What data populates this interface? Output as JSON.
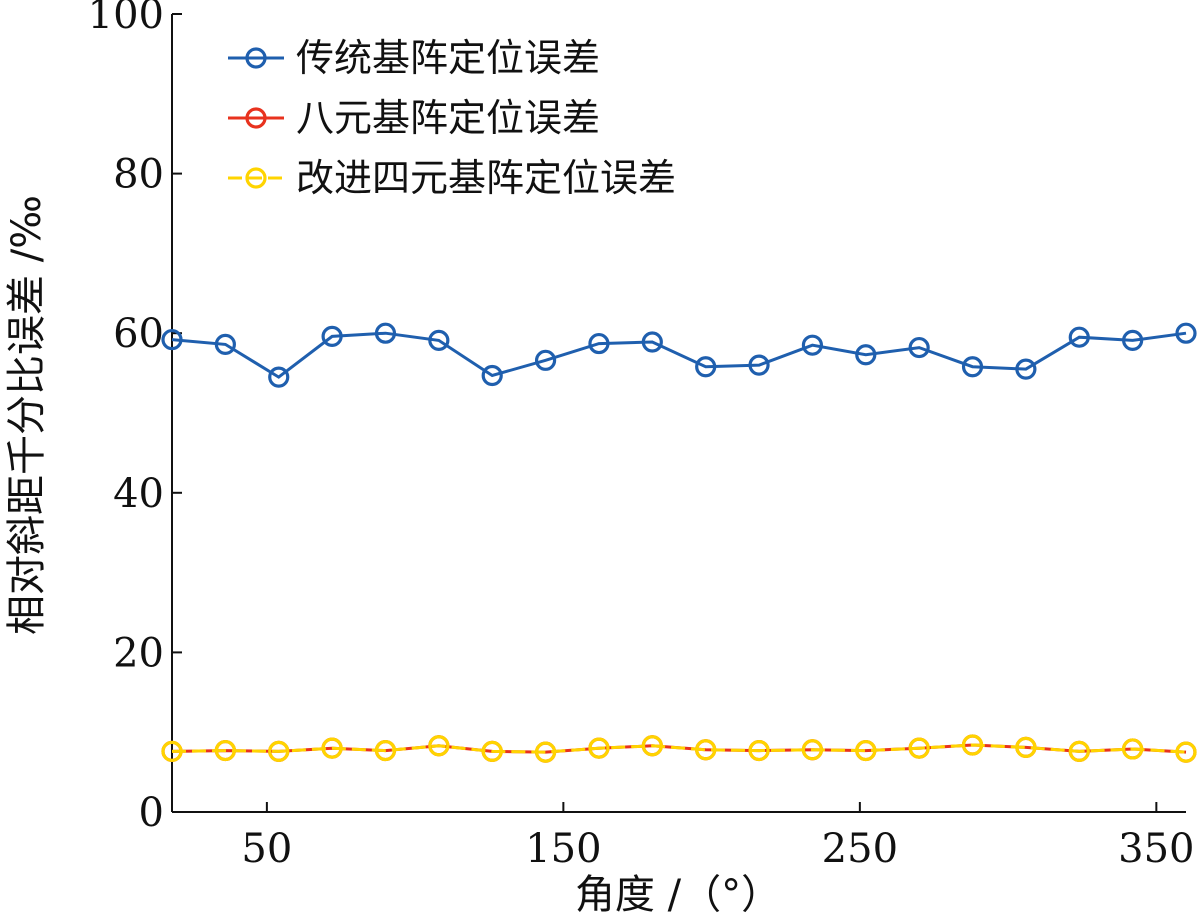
{
  "chart_data": {
    "type": "line",
    "xlabel": "角度 /（°）",
    "ylabel": "相对斜距千分比误差 /‰",
    "xlim": [
      18,
      360
    ],
    "ylim": [
      0,
      100
    ],
    "xticks": [
      50,
      150,
      250,
      350
    ],
    "yticks": [
      0,
      20,
      40,
      60,
      80,
      100
    ],
    "legend_position": "top-left",
    "x": [
      18,
      36,
      54,
      72,
      90,
      108,
      126,
      144,
      162,
      180,
      198,
      216,
      234,
      252,
      270,
      288,
      306,
      324,
      342,
      360
    ],
    "series": [
      {
        "name": "传统基阵定位误差",
        "color": "#1f5fae",
        "dash": "",
        "values": [
          59.2,
          58.6,
          54.5,
          59.6,
          60.0,
          59.1,
          54.7,
          56.6,
          58.7,
          58.9,
          55.8,
          56.0,
          58.5,
          57.3,
          58.2,
          55.8,
          55.5,
          59.5,
          59.1,
          60.0
        ]
      },
      {
        "name": "八元基阵定位误差",
        "color": "#e8321e",
        "dash": "",
        "values": [
          7.6,
          7.7,
          7.6,
          8.0,
          7.7,
          8.3,
          7.6,
          7.5,
          8.0,
          8.3,
          7.8,
          7.7,
          7.8,
          7.7,
          8.0,
          8.4,
          8.1,
          7.6,
          7.9,
          7.5
        ]
      },
      {
        "name": "改进四元基阵定位误差",
        "color": "#ffd400",
        "dash": "14 6",
        "values": [
          7.6,
          7.7,
          7.6,
          8.0,
          7.7,
          8.3,
          7.6,
          7.5,
          8.0,
          8.3,
          7.8,
          7.7,
          7.8,
          7.7,
          8.0,
          8.4,
          8.1,
          7.6,
          7.9,
          7.5
        ]
      }
    ]
  }
}
